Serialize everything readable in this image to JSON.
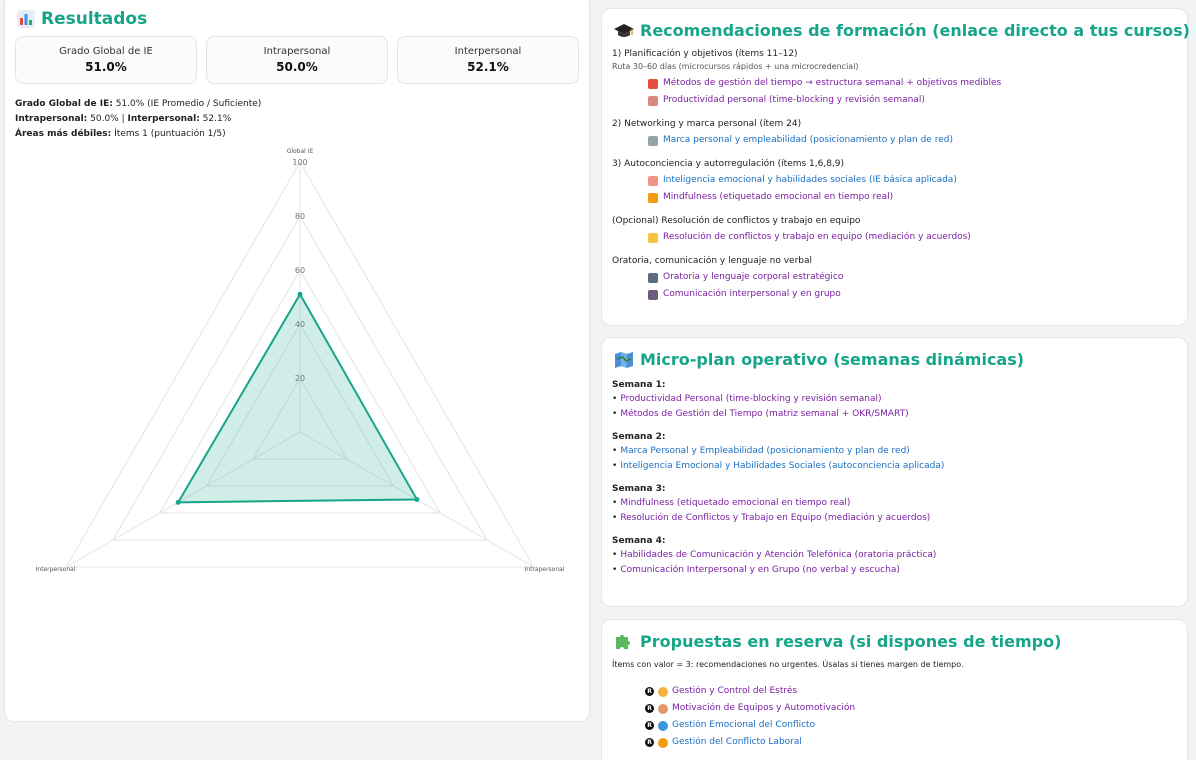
{
  "results": {
    "title": "Resultados",
    "metrics": [
      {
        "label": "Grado Global de IE",
        "value": "51.0%"
      },
      {
        "label": "Intrapersonal",
        "value": "50.0%"
      },
      {
        "label": "Interpersonal",
        "value": "52.1%"
      }
    ],
    "summary": {
      "global_label": "Grado Global de IE:",
      "global_text": "51.0% (IE Promedio / Suficiente)",
      "intra_label": "Intrapersonal:",
      "intra_text": "50.0% |",
      "inter_label": "Interpersonal:",
      "inter_text": "52.1%",
      "weak_label": "Áreas más débiles:",
      "weak_text": "Ítems 1 (puntuación 1/5)"
    }
  },
  "chart_data": {
    "type": "radar",
    "axes": [
      "Global IE",
      "Intrapersonal",
      "Interpersonal"
    ],
    "values": [
      51.0,
      50.0,
      52.1
    ],
    "ticks": [
      "20",
      "40",
      "60",
      "80",
      "100"
    ],
    "range": [
      0,
      100
    ],
    "color": "#17a589"
  },
  "training": {
    "title": "Recomendaciones de formación (enlace directo a tus cursos)",
    "sections": [
      {
        "head": "1) Planificación y objetivos (ítems 11–12)",
        "sub": "Ruta 30–60 días (microcursos rápidos + una microcredencial)",
        "courses": [
          {
            "label": "Métodos de gestión del tiempo → estructura semanal + objetivos medibles",
            "icon": "target-icon",
            "color": "purple"
          },
          {
            "label": "Productividad personal (time-blocking y revisión semanal)",
            "icon": "notebook-icon",
            "color": "purple"
          }
        ]
      },
      {
        "head": "2) Networking y marca personal (ítem 24)",
        "sub": "",
        "courses": [
          {
            "label": "Marca personal y empleabilidad (posicionamiento y plan de red)",
            "icon": "link-icon",
            "color": "blue"
          }
        ]
      },
      {
        "head": "3) Autoconciencia y autorregulación (ítems 1,6,8,9)",
        "sub": "",
        "courses": [
          {
            "label": "Inteligencia emocional y habilidades sociales (IE básica aplicada)",
            "icon": "brain-icon",
            "color": "blue"
          },
          {
            "label": "Mindfulness (etiquetado emocional en tiempo real)",
            "icon": "meditation-icon",
            "color": "purple"
          }
        ]
      },
      {
        "head": "(Opcional) Resolución de conflictos y trabajo en equipo",
        "sub": "",
        "courses": [
          {
            "label": "Resolución de conflictos y trabajo en equipo (mediación y acuerdos)",
            "icon": "handshake-icon",
            "color": "purple"
          }
        ]
      },
      {
        "head": "Oratoria, comunicación y lenguaje no verbal",
        "sub": "",
        "courses": [
          {
            "label": "Oratoria y lenguaje corporal estratégico",
            "icon": "speaker-icon",
            "color": "purple"
          },
          {
            "label": "Comunicación interpersonal y en grupo",
            "icon": "people-icon",
            "color": "purple"
          }
        ]
      }
    ]
  },
  "microplan": {
    "title": "Micro-plan operativo (semanas dinámicas)",
    "weeks": [
      {
        "title": "Semana 1:",
        "items": [
          {
            "label": "Productividad Personal (time-blocking y revisión semanal)",
            "color": "purple"
          },
          {
            "label": "Métodos de Gestión del Tiempo (matriz semanal + OKR/SMART)",
            "color": "purple"
          }
        ]
      },
      {
        "title": "Semana 2:",
        "items": [
          {
            "label": "Marca Personal y Empleabilidad (posicionamiento y plan de red)",
            "color": "blue"
          },
          {
            "label": "Inteligencia Emocional y Habilidades Sociales (autoconciencia aplicada)",
            "color": "blue"
          }
        ]
      },
      {
        "title": "Semana 3:",
        "items": [
          {
            "label": "Mindfulness (etiquetado emocional en tiempo real)",
            "color": "purple"
          },
          {
            "label": "Resolución de Conflictos y Trabajo en Equipo (mediación y acuerdos)",
            "color": "purple"
          }
        ]
      },
      {
        "title": "Semana 4:",
        "items": [
          {
            "label": "Habilidades de Comunicación y Atención Telefónica (oratoria práctica)",
            "color": "purple"
          },
          {
            "label": "Comunicación Interpersonal y en Grupo (no verbal y escucha)",
            "color": "purple"
          }
        ]
      }
    ]
  },
  "reserve": {
    "title": "Propuestas en reserva (si dispones de tiempo)",
    "note": "Ítems con valor = 3: recomendaciones no urgentes. Úsalas si tienes margen de tiempo.",
    "badge": "R",
    "items": [
      {
        "label": "Gestión y Control del Estrés",
        "icon": "stress-icon",
        "color": "purple"
      },
      {
        "label": "Motivación de Equipos y Automotivación",
        "icon": "motivation-icon",
        "color": "purple"
      },
      {
        "label": "Gestión Emocional del Conflicto",
        "icon": "shield-icon",
        "color": "blue"
      },
      {
        "label": "Gestión del Conflicto Laboral",
        "icon": "meditation-icon",
        "color": "blue"
      }
    ]
  },
  "colors": {
    "accent": "#17a589",
    "purple": "#7b1fa2",
    "blue": "#1a6fc4"
  }
}
